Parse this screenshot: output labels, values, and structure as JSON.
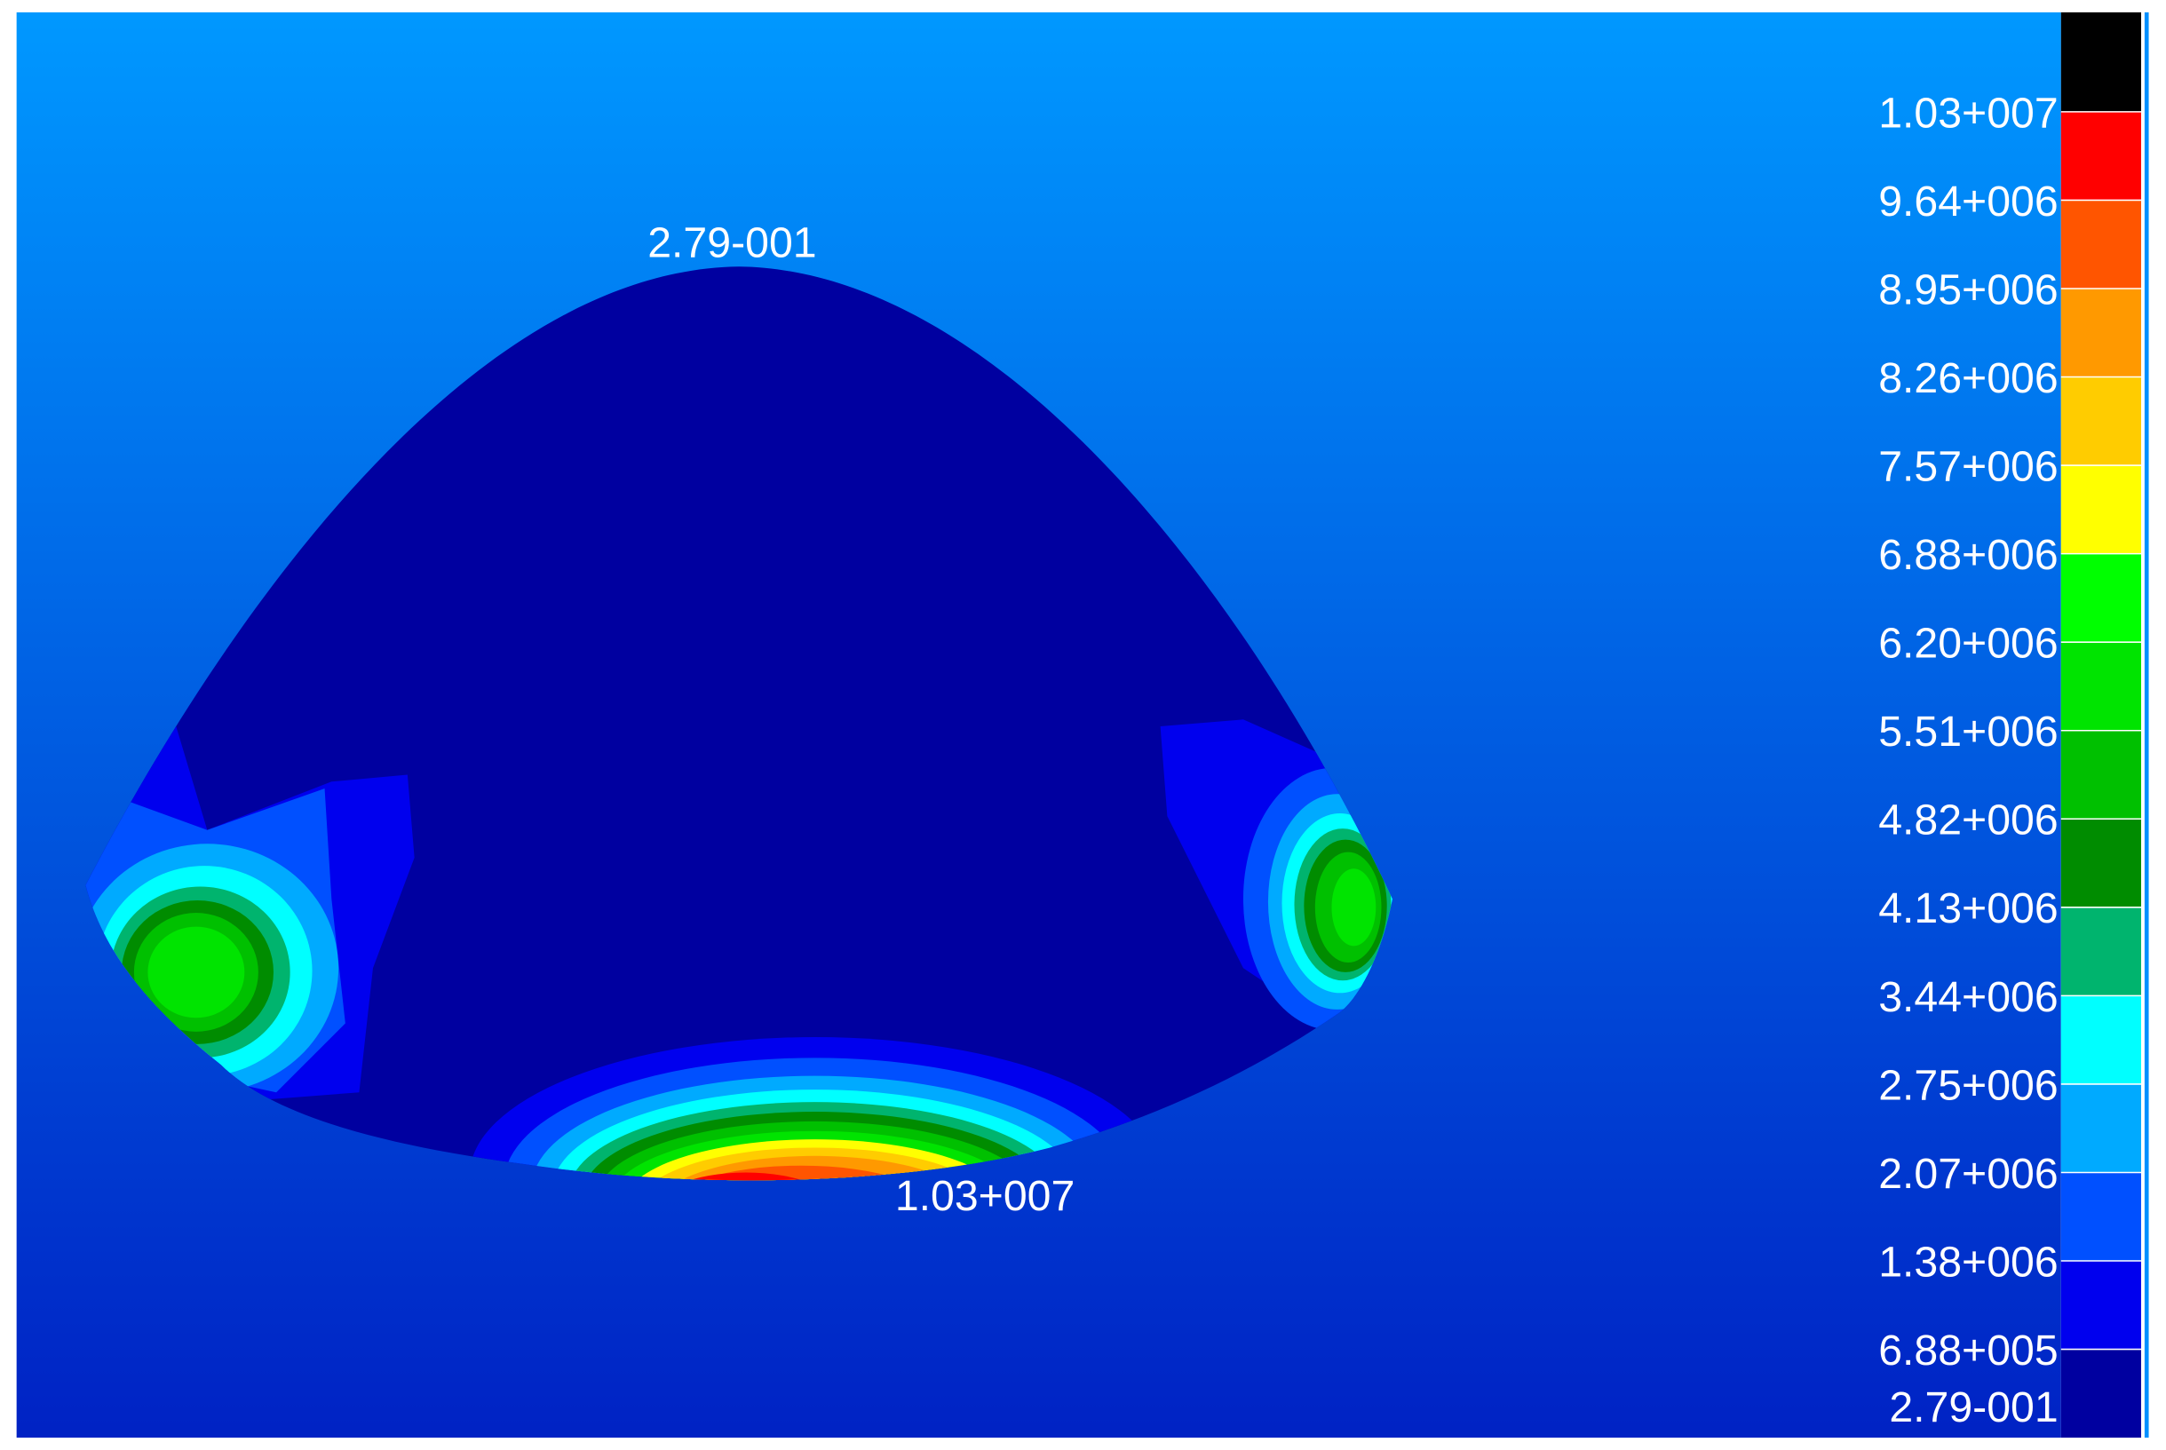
{
  "annotations": {
    "min_label": "2.79-001",
    "max_label": "1.03+007"
  },
  "legend": {
    "labels": [
      "1.03+007",
      "9.64+006",
      "8.95+006",
      "8.26+006",
      "7.57+006",
      "6.88+006",
      "6.20+006",
      "5.51+006",
      "4.82+006",
      "4.13+006",
      "3.44+006",
      "2.75+006",
      "2.07+006",
      "1.38+006",
      "6.88+005",
      "2.79-001"
    ],
    "colors": [
      "#000000",
      "#ff0000",
      "#ff5500",
      "#ff9900",
      "#ffcc00",
      "#ffff00",
      "#00ff00",
      "#00e400",
      "#00c000",
      "#008c00",
      "#00b46e",
      "#00ffff",
      "#00aaff",
      "#0050ff",
      "#0000ee",
      "#0000a0"
    ]
  }
}
